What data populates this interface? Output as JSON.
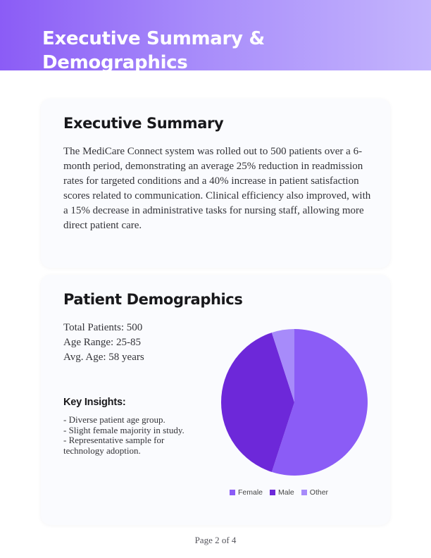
{
  "header": {
    "title": "Executive Summary & Demographics"
  },
  "executive_summary": {
    "heading": "Executive Summary",
    "body": "The MediCare Connect system was rolled out to 500 patients over a 6-month period, demonstrating an average 25% reduction in readmission rates for targeted conditions and a 40% increase in patient satisfaction scores related to communication. Clinical efficiency also improved, with a 15% decrease in administrative tasks for nursing staff, allowing more direct patient care."
  },
  "demographics": {
    "heading": "Patient Demographics",
    "stats": [
      "Total Patients: 500",
      "Age Range: 25-85",
      "Avg. Age: 58 years"
    ],
    "insights_title": "Key Insights:",
    "insights": [
      "- Diverse patient age group.",
      "- Slight female majority in study.",
      "- Representative sample for technology adoption."
    ]
  },
  "chart_data": {
    "type": "pie",
    "title": "",
    "categories": [
      "Female",
      "Male",
      "Other"
    ],
    "values": [
      55,
      40,
      5
    ],
    "colors": [
      "#8b5cf6",
      "#6d28d9",
      "#a78bfa"
    ],
    "start_angle_deg": 0,
    "direction": "clockwise",
    "legend_position": "bottom"
  },
  "footer": {
    "page_label": "Page 2 of 4"
  }
}
